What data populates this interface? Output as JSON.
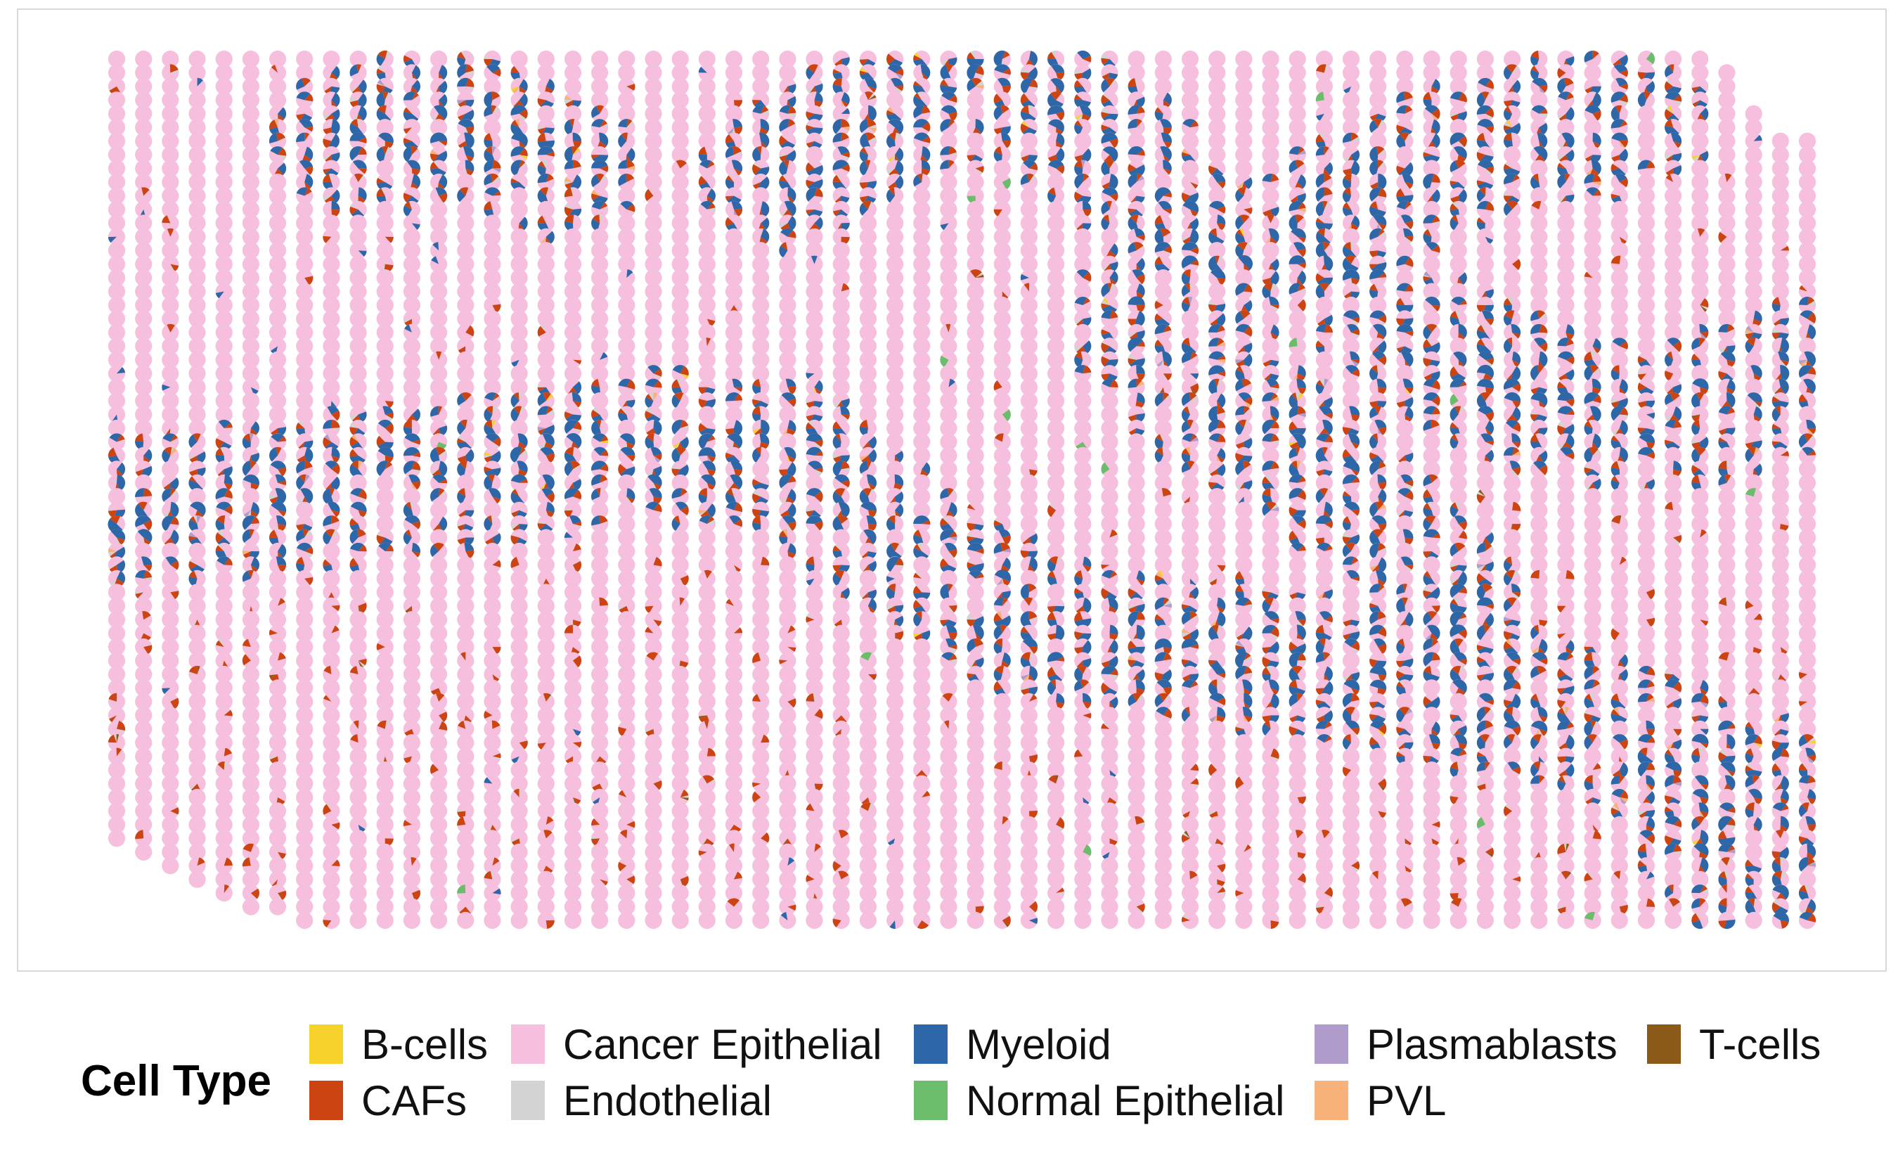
{
  "chart_data": {
    "type": "spatial-pie-scatter",
    "title": "",
    "xlabel": "",
    "ylabel": "",
    "grid": false,
    "legend_placement": "bottom",
    "legend": {
      "title": "Cell Type",
      "entries": [
        {
          "name": "B-cells",
          "color": "#F7D22A"
        },
        {
          "name": "CAFs",
          "color": "#CC4411"
        },
        {
          "name": "Cancer Epithelial",
          "color": "#F7BFDE"
        },
        {
          "name": "Endothelial",
          "color": "#D3D3D3"
        },
        {
          "name": "Myeloid",
          "color": "#2E67A8"
        },
        {
          "name": "Normal Epithelial",
          "color": "#6BBD6B"
        },
        {
          "name": "Plasmablasts",
          "color": "#B09CCB"
        },
        {
          "name": "PVL",
          "color": "#F7B27A"
        },
        {
          "name": "T-cells",
          "color": "#8C5A18"
        }
      ]
    },
    "spots": {
      "rows": 64,
      "cols": 64,
      "dominant_type": "Cancer Epithelial",
      "hotspot_types": [
        "Myeloid",
        "CAFs",
        "Endothelial"
      ]
    }
  }
}
